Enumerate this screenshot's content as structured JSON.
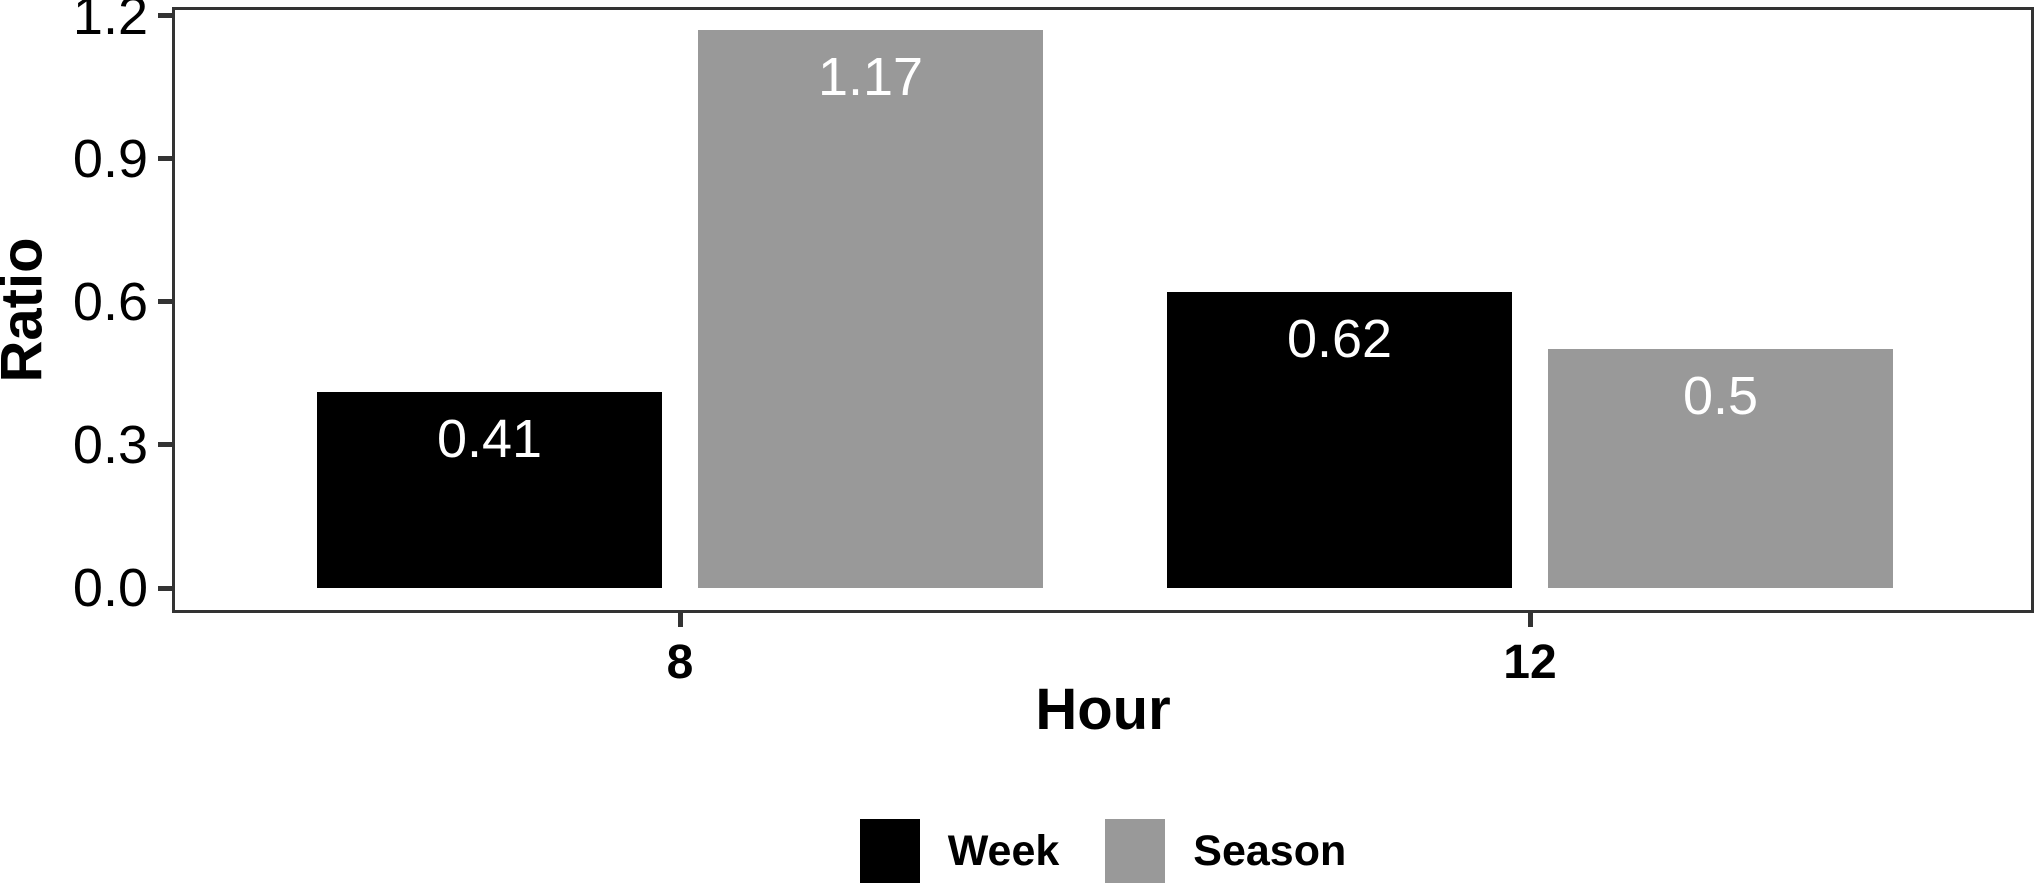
{
  "figure": {
    "background_color": "#ffffff",
    "panel_border_color": "#333333",
    "axis_tick_color": "#333333",
    "axis_text_color": "#000000"
  },
  "chart_data": {
    "type": "bar",
    "title": "",
    "xlabel": "Hour",
    "ylabel": "Ratio",
    "categories": [
      "8",
      "12"
    ],
    "series": [
      {
        "name": "Week",
        "color": "#000000",
        "values": [
          0.41,
          0.62
        ],
        "data_labels": [
          "0.41",
          "0.62"
        ]
      },
      {
        "name": "Season",
        "color": "#999999",
        "values": [
          1.17,
          0.5
        ],
        "data_labels": [
          "1.17",
          "0.5"
        ]
      }
    ],
    "bar_label_color": "#ffffff",
    "y_ticks": [
      0.0,
      0.3,
      0.6,
      0.9,
      1.2
    ],
    "y_tick_labels": [
      "0.0",
      "0.3",
      "0.6",
      "0.9",
      "1.2"
    ],
    "ylim": [
      0,
      1.2
    ],
    "grid": false,
    "legend_position": "bottom"
  }
}
